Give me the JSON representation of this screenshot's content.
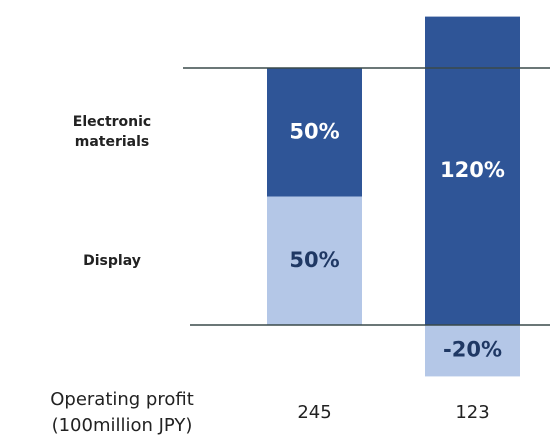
{
  "chart_data": {
    "type": "stacked_bar",
    "x_label": [
      "Operating profit",
      "(100million JPY)"
    ],
    "categories": [
      "245",
      "123"
    ],
    "series": [
      {
        "name": "Display",
        "color": "#b4c7e7",
        "label_color": "#1f3864",
        "values": [
          50,
          -20
        ],
        "value_labels": [
          "50%",
          "-20%"
        ]
      },
      {
        "name": "Electronic materials",
        "color": "#2f5597",
        "label_color": "#ffffff",
        "values": [
          50,
          120
        ],
        "value_labels": [
          "50%",
          "120%"
        ]
      }
    ],
    "ylim": [
      -20,
      120
    ],
    "reference_lines": [
      0,
      100
    ]
  }
}
